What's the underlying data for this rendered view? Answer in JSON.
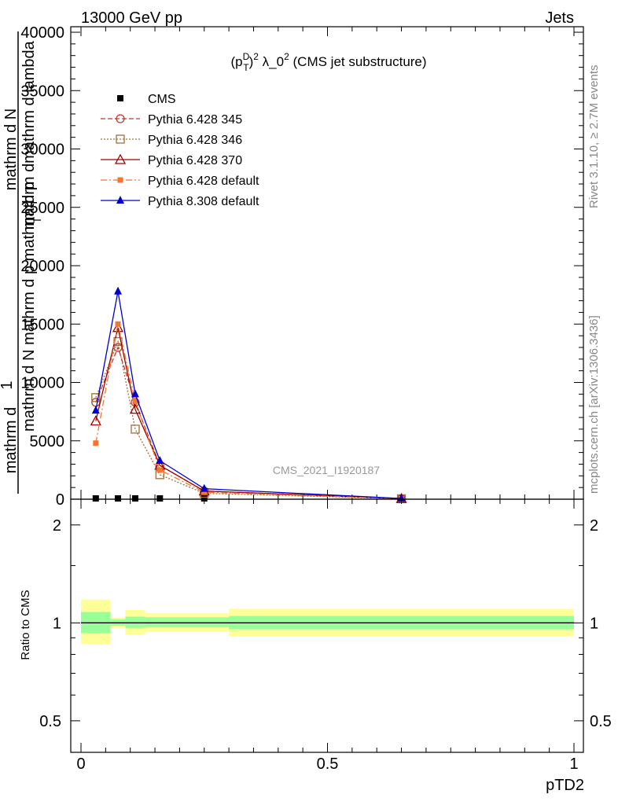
{
  "header": {
    "left": "13000 GeV pp",
    "right": "Jets"
  },
  "side_labels": {
    "rivet": "Rivet 3.1.10, ≥ 2.7M events",
    "mcplots": "mcplots.cern.ch [arXiv:1306.3436]"
  },
  "watermark": "CMS_2021_I1920187",
  "chart_data": [
    {
      "type": "line",
      "title_parts": {
        "p": "(p",
        "sup_d": "D",
        "sub_t": "T",
        "sup_2": "2",
        "rest": " λ_0",
        "sup_2b": "2",
        "tail": " (CMS jet substructure)"
      },
      "ylabel_lines": [
        "1",
        "mathrm d N",
        "mathrm d N",
        "mathrm d p",
        "mathrm d p",
        "T",
        "mathrm d",
        "mathrm d"
      ],
      "ylabel_overlap": {
        "one": "1",
        "denominator": "mathrm d N   mathrm d p   mathrm d p",
        "t_sub": "T",
        "numerator_1": "mathrm d",
        "numerator_2": "mathrm d",
        "lambda_text": "mathrm d lambda",
        "n_text": "mathrm d N"
      },
      "xlim": [
        0,
        1
      ],
      "ylim": [
        0,
        40000
      ],
      "yticks": [
        0,
        5000,
        10000,
        15000,
        20000,
        25000,
        30000,
        35000,
        40000
      ],
      "ytick_labels": [
        "0",
        "5000",
        "10000",
        "15000",
        "20000",
        "25000",
        "30000",
        "35000",
        "40000"
      ],
      "legend_position": "top-left",
      "series": [
        {
          "name": "CMS",
          "color": "#000000",
          "marker": "square-filled",
          "dash": "",
          "x": [
            0.03,
            0.075,
            0.11,
            0.16,
            0.25,
            0.65
          ],
          "y": [
            0,
            0,
            0,
            0,
            0,
            0
          ]
        },
        {
          "name": "Pythia 6.428 345",
          "color": "#c0392b",
          "marker": "circle-open",
          "dash": "6,3",
          "x": [
            0.03,
            0.075,
            0.11,
            0.16,
            0.25,
            0.65
          ],
          "y": [
            8300,
            13000,
            8300,
            2900,
            700,
            50
          ]
        },
        {
          "name": "Pythia 6.428 346",
          "color": "#a0703a",
          "marker": "square-open",
          "dash": "2,2",
          "x": [
            0.03,
            0.075,
            0.11,
            0.16,
            0.25,
            0.65
          ],
          "y": [
            8700,
            13500,
            6000,
            2100,
            500,
            40
          ]
        },
        {
          "name": "Pythia 6.428 370",
          "color": "#a00000",
          "marker": "triangle-open",
          "dash": "",
          "x": [
            0.03,
            0.075,
            0.11,
            0.16,
            0.25,
            0.65
          ],
          "y": [
            6700,
            14700,
            7700,
            2900,
            700,
            50
          ]
        },
        {
          "name": "Pythia 6.428 default",
          "color": "#f07830",
          "marker": "square-filled-small",
          "dash": "8,3,2,3",
          "x": [
            0.03,
            0.075,
            0.11,
            0.16,
            0.25,
            0.65
          ],
          "y": [
            4800,
            15000,
            8400,
            2500,
            600,
            40
          ]
        },
        {
          "name": "Pythia 8.308 default",
          "color": "#0000cc",
          "marker": "triangle-filled",
          "dash": "",
          "x": [
            0.03,
            0.075,
            0.11,
            0.16,
            0.25,
            0.65
          ],
          "y": [
            7600,
            17800,
            9000,
            3300,
            900,
            60
          ]
        }
      ]
    },
    {
      "type": "area",
      "ylabel": "Ratio to CMS",
      "xlabel": "pTD2",
      "xlim": [
        0,
        1
      ],
      "ylim": [
        0.4,
        2.4
      ],
      "log_y": true,
      "yticks": [
        0.5,
        1,
        2
      ],
      "ytick_labels": [
        "0.5",
        "1",
        "2"
      ],
      "xticks": [
        0,
        0.5,
        1
      ],
      "xtick_labels": [
        "0",
        "0.5",
        "1"
      ],
      "bands": [
        {
          "x0": 0.0,
          "x1": 0.06,
          "yellow": [
            0.86,
            1.18
          ],
          "green": [
            0.93,
            1.08
          ]
        },
        {
          "x0": 0.06,
          "x1": 0.09,
          "yellow": [
            0.965,
            1.04
          ],
          "green": [
            0.98,
            1.025
          ]
        },
        {
          "x0": 0.09,
          "x1": 0.13,
          "yellow": [
            0.92,
            1.095
          ],
          "green": [
            0.965,
            1.045
          ]
        },
        {
          "x0": 0.13,
          "x1": 0.3,
          "yellow": [
            0.94,
            1.07
          ],
          "green": [
            0.97,
            1.04
          ]
        },
        {
          "x0": 0.3,
          "x1": 1.0,
          "yellow": [
            0.91,
            1.105
          ],
          "green": [
            0.955,
            1.05
          ]
        }
      ],
      "colors": {
        "yellow": "#ffff99",
        "green": "#99ff99"
      }
    }
  ]
}
